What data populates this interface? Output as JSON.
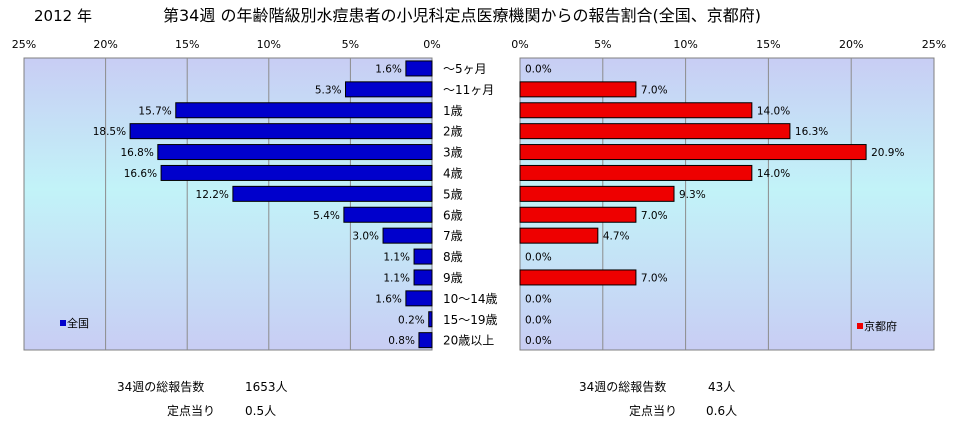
{
  "header": {
    "year": "2012 年",
    "title": "第34週 の年齢階級別水痘患者の小児科定点医療機関からの報告割合(全国、京都府)"
  },
  "chart_data": {
    "type": "bar",
    "orientation": "horizontal",
    "layout": "back-to-back",
    "categories": [
      "～5ヶ月",
      "～11ヶ月",
      "1歳",
      "2歳",
      "3歳",
      "4歳",
      "5歳",
      "6歳",
      "7歳",
      "8歳",
      "9歳",
      "10～14歳",
      "15～19歳",
      "20歳以上"
    ],
    "series": [
      {
        "name": "全国",
        "color": "#0000cc",
        "values": [
          1.6,
          5.3,
          15.7,
          18.5,
          16.8,
          16.6,
          12.2,
          5.4,
          3.0,
          1.1,
          1.1,
          1.6,
          0.2,
          0.8
        ],
        "labels": [
          "1.6%",
          "5.3%",
          "15.7%",
          "18.5%",
          "16.8%",
          "16.6%",
          "12.2%",
          "5.4%",
          "3.0%",
          "1.1%",
          "1.1%",
          "1.6%",
          "0.2%",
          "0.8%"
        ],
        "axis_ticks": [
          "25%",
          "20%",
          "15%",
          "10%",
          "5%",
          "0%"
        ],
        "xlim": [
          0,
          25
        ],
        "direction": "right-to-left"
      },
      {
        "name": "京都府",
        "color": "#ee0000",
        "values": [
          0.0,
          7.0,
          14.0,
          16.3,
          20.9,
          14.0,
          9.3,
          7.0,
          4.7,
          0.0,
          7.0,
          0.0,
          0.0,
          0.0
        ],
        "labels": [
          "0.0%",
          "7.0%",
          "14.0%",
          "16.3%",
          "20.9%",
          "14.0%",
          "9.3%",
          "7.0%",
          "4.7%",
          "0.0%",
          "7.0%",
          "0.0%",
          "0.0%",
          "0.0%"
        ],
        "axis_ticks": [
          "0%",
          "5%",
          "10%",
          "15%",
          "20%",
          "25%"
        ],
        "xlim": [
          0,
          25
        ],
        "direction": "left-to-right"
      }
    ],
    "grid": true,
    "background": "gradient light blue"
  },
  "summary": {
    "national": {
      "reports_label": "34週の総報告数",
      "reports_value": "1653人",
      "per_site_label": "定点当り",
      "per_site_value": "0.5人"
    },
    "kyoto": {
      "reports_label": "34週の総報告数",
      "reports_value": "43人",
      "per_site_label": "定点当り",
      "per_site_value": "0.6人"
    }
  }
}
